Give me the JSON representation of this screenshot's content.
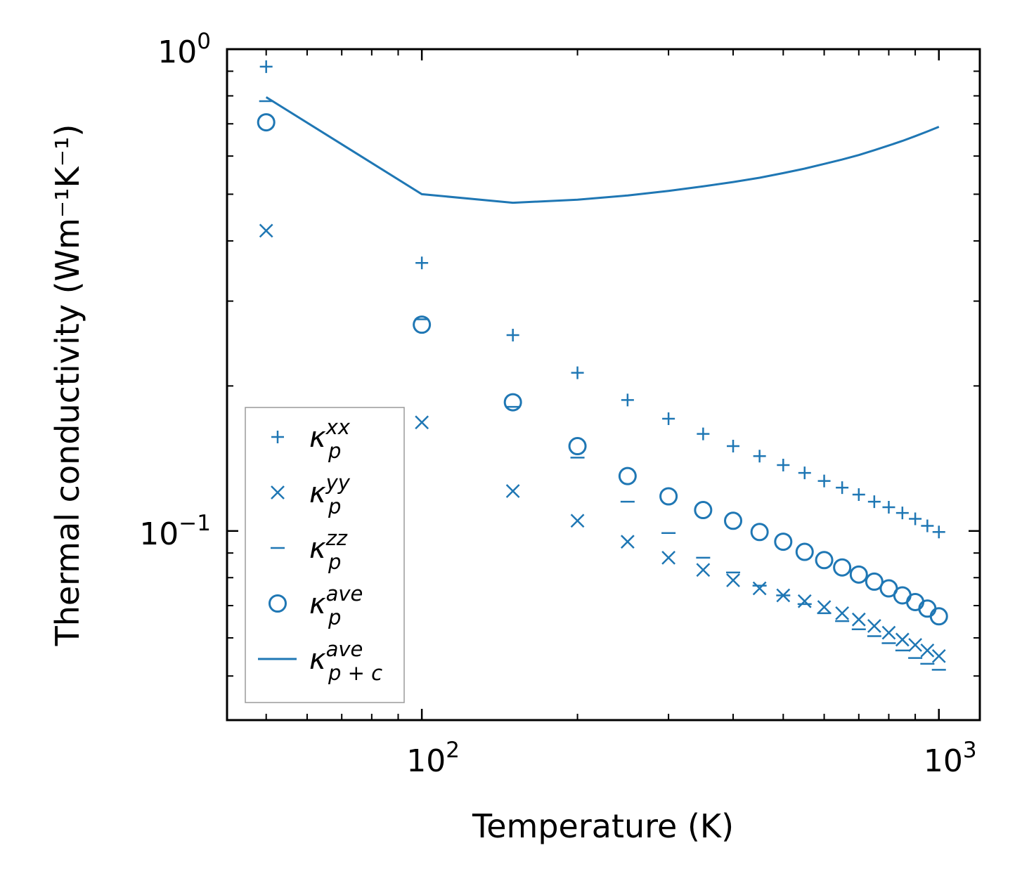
{
  "chart_data": {
    "type": "scatter",
    "title": "",
    "xlabel": "Temperature (K)",
    "ylabel": "Thermal conductivity (Wm⁻¹K⁻¹)",
    "xscale": "log",
    "yscale": "log",
    "xlim": [
      42,
      1200
    ],
    "ylim": [
      0.0405,
      1.0
    ],
    "color": "#1f77b4",
    "x_ticks": [
      {
        "value": 100,
        "base": "10",
        "exp": "2"
      },
      {
        "value": 1000,
        "base": "10",
        "exp": "3"
      }
    ],
    "y_ticks": [
      {
        "value": 0.1,
        "base": "10",
        "exp": "−1"
      },
      {
        "value": 1.0,
        "base": "10",
        "exp": "0"
      }
    ],
    "x": [
      50,
      100,
      150,
      200,
      250,
      300,
      350,
      400,
      450,
      500,
      550,
      600,
      650,
      700,
      750,
      800,
      850,
      900,
      950,
      1000
    ],
    "series": [
      {
        "name": "κ_p^xx",
        "label_base": "κ",
        "label_sub": "p",
        "label_sup": "xx",
        "marker": "plus",
        "values": [
          0.92,
          0.36,
          0.255,
          0.213,
          0.187,
          0.171,
          0.159,
          0.15,
          0.143,
          0.137,
          0.132,
          0.127,
          0.123,
          0.119,
          0.115,
          0.112,
          0.109,
          0.106,
          0.1025,
          0.0995
        ]
      },
      {
        "name": "κ_p^yy",
        "label_base": "κ",
        "label_sub": "p",
        "label_sup": "yy",
        "marker": "x",
        "values": [
          0.42,
          0.168,
          0.121,
          0.105,
          0.095,
          0.088,
          0.083,
          0.079,
          0.076,
          0.0735,
          0.0715,
          0.0695,
          0.0675,
          0.0655,
          0.0635,
          0.0615,
          0.0595,
          0.058,
          0.0565,
          0.055
        ]
      },
      {
        "name": "κ_p^zz",
        "label_base": "κ",
        "label_sub": "p",
        "label_sup": "zz",
        "marker": "hline",
        "values": [
          0.78,
          0.275,
          0.181,
          0.142,
          0.115,
          0.099,
          0.088,
          0.082,
          0.077,
          0.0735,
          0.0705,
          0.0675,
          0.065,
          0.0625,
          0.0605,
          0.0585,
          0.0565,
          0.0545,
          0.053,
          0.0515
        ]
      },
      {
        "name": "κ_p^ave",
        "label_base": "κ",
        "label_sub": "p",
        "label_sup": "ave",
        "marker": "circle",
        "values": [
          0.705,
          0.268,
          0.185,
          0.15,
          0.13,
          0.118,
          0.1105,
          0.105,
          0.0995,
          0.095,
          0.0905,
          0.087,
          0.084,
          0.0812,
          0.0785,
          0.076,
          0.0735,
          0.0712,
          0.069,
          0.0665
        ]
      },
      {
        "name": "κ_{p+c}^ave",
        "label_base": "κ",
        "label_sub": "p + c",
        "label_sup": "ave",
        "marker": "line",
        "values": [
          0.795,
          0.5,
          0.48,
          0.487,
          0.497,
          0.508,
          0.519,
          0.53,
          0.541,
          0.553,
          0.565,
          0.578,
          0.59,
          0.603,
          0.617,
          0.631,
          0.645,
          0.66,
          0.675,
          0.69
        ]
      }
    ],
    "legend_position": "lower-left",
    "grid": false
  }
}
